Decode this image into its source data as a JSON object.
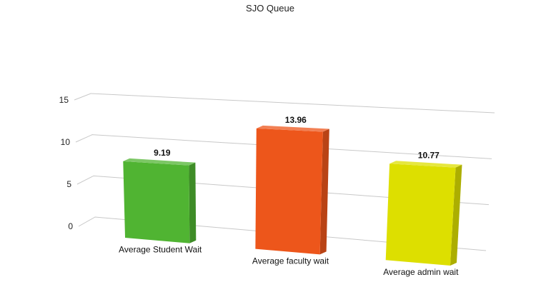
{
  "chart_data": {
    "type": "bar",
    "title": "SJO Queue",
    "categories": [
      "Average Student Wait",
      "Average faculty wait",
      "Average admin wait"
    ],
    "values": [
      9.19,
      13.96,
      10.77
    ],
    "value_labels": [
      "9.19",
      "13.96",
      "10.77"
    ],
    "colors": [
      "#50b432",
      "#ed561b",
      "#dddf00"
    ],
    "ylim": [
      0,
      15
    ],
    "yticks": [
      "0",
      "5",
      "10",
      "15"
    ],
    "grid": true,
    "style": "3d"
  }
}
